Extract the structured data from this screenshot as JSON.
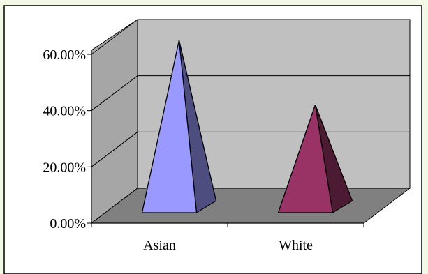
{
  "chart_data": {
    "type": "bar",
    "shape": "pyramid-3d",
    "categories": [
      "Asian",
      "White"
    ],
    "values": [
      57,
      34
    ],
    "series_colors": [
      "#9999ff",
      "#993366"
    ],
    "ylim": [
      0,
      60
    ],
    "yticks": [
      "0.00%",
      "20.00%",
      "40.00%",
      "60.00%"
    ],
    "title": "",
    "xlabel": "",
    "ylabel": "",
    "grid": true,
    "legend": "none"
  },
  "colors": {
    "background": "#f3f8e6",
    "plot_area": "#ffffff",
    "back_wall": "#c0c0c0",
    "floor": "#808080"
  }
}
